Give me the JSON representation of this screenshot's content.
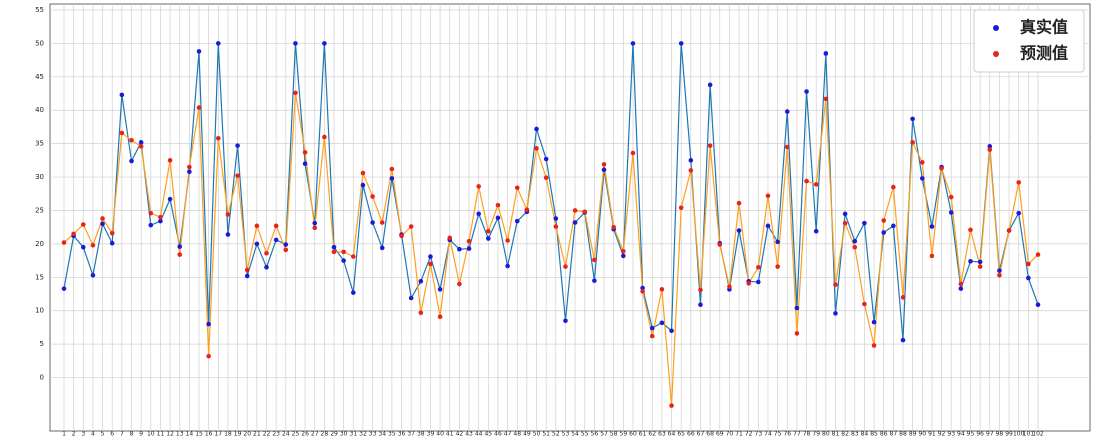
{
  "chart_data": {
    "type": "line",
    "categories": [
      "1",
      "2",
      "3",
      "4",
      "5",
      "6",
      "7",
      "8",
      "9",
      "10",
      "11",
      "12",
      "13",
      "14",
      "15",
      "16",
      "17",
      "18",
      "19",
      "20",
      "21",
      "22",
      "23",
      "24",
      "25",
      "26",
      "27",
      "28",
      "29",
      "30",
      "31",
      "32",
      "33",
      "34",
      "35",
      "36",
      "37",
      "38",
      "39",
      "40",
      "41",
      "42",
      "43",
      "44",
      "45",
      "46",
      "47",
      "48",
      "49",
      "50",
      "51",
      "52",
      "53",
      "54",
      "55",
      "56",
      "57",
      "58",
      "59",
      "60",
      "61",
      "62",
      "63",
      "64",
      "65",
      "66",
      "67",
      "68",
      "69",
      "70",
      "71",
      "72",
      "73",
      "74",
      "75",
      "76",
      "77",
      "78",
      "79",
      "80",
      "81",
      "82",
      "83",
      "84",
      "85",
      "86",
      "87",
      "88",
      "89",
      "90",
      "91",
      "92",
      "93",
      "94",
      "95",
      "96",
      "97",
      "98",
      "99",
      "100",
      "101",
      "102"
    ],
    "series": [
      {
        "name": "真实值",
        "color": "#1f77b4",
        "marker_color": "#1a1adb",
        "values": [
          13.3,
          21.2,
          19.5,
          15.3,
          23,
          20.1,
          42.3,
          32.4,
          35.2,
          22.8,
          23.4,
          26.7,
          19.6,
          30.8,
          48.8,
          8,
          50,
          21.4,
          34.7,
          15.2,
          20,
          16.5,
          20.6,
          19.9,
          50,
          32,
          23.1,
          50,
          19.5,
          17.5,
          12.7,
          28.8,
          23.2,
          19.4,
          29.8,
          21.4,
          11.9,
          14.4,
          18.1,
          13.2,
          20.6,
          19.2,
          19.3,
          24.5,
          20.8,
          23.9,
          16.7,
          23.4,
          24.8,
          37.2,
          32.7,
          23.8,
          8.5,
          23.2,
          24.7,
          14.5,
          31.1,
          22.2,
          18.2,
          50,
          13.4,
          7.4,
          8.2,
          7,
          50,
          32.5,
          10.9,
          43.8,
          20.1,
          13.2,
          22,
          14.4,
          14.3,
          22.7,
          20.3,
          39.8,
          10.4,
          42.8,
          21.9,
          48.5,
          9.6,
          24.5,
          20.4,
          23.1,
          8.3,
          21.7,
          22.7,
          5.6,
          38.7,
          29.8,
          22.6,
          31.5,
          24.7,
          13.3,
          17.4,
          17.3,
          34.6,
          16,
          22,
          24.6,
          14.9,
          10.9
        ]
      },
      {
        "name": "预测值",
        "color": "#ff9f1c",
        "marker_color": "#e8241a",
        "values": [
          20.2,
          21.5,
          22.9,
          19.8,
          23.8,
          21.6,
          36.6,
          35.5,
          34.6,
          24.6,
          24,
          32.5,
          18.4,
          31.5,
          40.4,
          3.2,
          35.8,
          24.4,
          30.2,
          16.1,
          22.7,
          18.6,
          22.7,
          19.1,
          42.6,
          33.7,
          22.4,
          36,
          18.8,
          18.8,
          18.1,
          30.6,
          27.1,
          23.2,
          31.2,
          21.2,
          22.6,
          9.7,
          17,
          9.1,
          20.9,
          14,
          20.4,
          28.6,
          21.9,
          25.8,
          20.5,
          28.4,
          25.1,
          34.3,
          29.9,
          22.6,
          16.6,
          25,
          24.8,
          17.6,
          31.9,
          22.5,
          18.9,
          33.6,
          12.9,
          6.2,
          13.2,
          -4.2,
          25.4,
          31,
          13.1,
          34.7,
          19.9,
          13.6,
          26.1,
          14.1,
          16.5,
          27.2,
          16.6,
          34.5,
          6.6,
          29.4,
          28.9,
          41.7,
          13.9,
          23.1,
          19.5,
          11,
          4.8,
          23.5,
          28.5,
          12,
          35.2,
          32.2,
          18.2,
          31.3,
          27,
          14,
          22.1,
          16.6,
          34.1,
          15.3,
          22,
          29.2,
          17,
          18.4
        ]
      }
    ],
    "ylim": [
      -8,
      55
    ],
    "yticks": [
      0,
      5,
      10,
      15,
      20,
      25,
      30,
      35,
      40,
      45,
      50,
      55
    ],
    "grid": true,
    "legend": "upper right"
  }
}
